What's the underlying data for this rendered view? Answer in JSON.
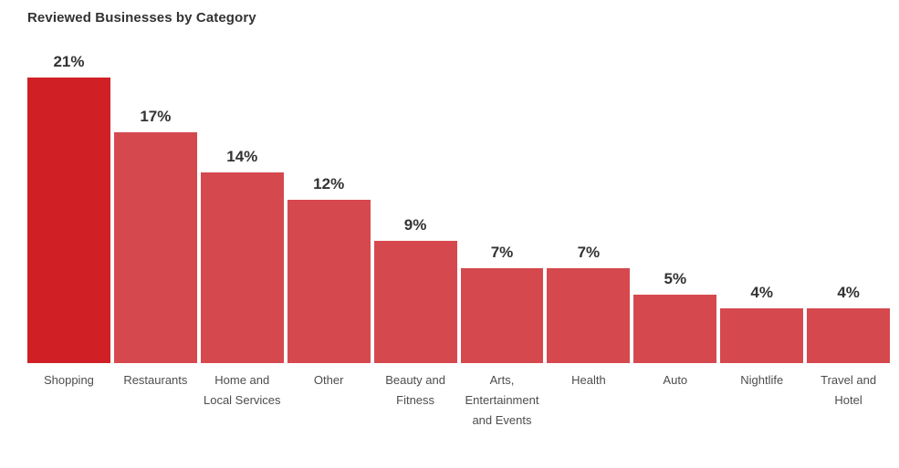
{
  "page": {
    "background": "#ffffff"
  },
  "chart_data": {
    "type": "bar",
    "title": "Reviewed Businesses by Category",
    "categories": [
      "Shopping",
      "Restaurants",
      "Home and Local Services",
      "Other",
      "Beauty and Fitness",
      "Arts, Entertainment and Events",
      "Health",
      "Auto",
      "Nightlife",
      "Travel and Hotel"
    ],
    "values": [
      21,
      17,
      14,
      12,
      9,
      7,
      7,
      5,
      4,
      4
    ],
    "value_labels": [
      "21%",
      "17%",
      "14%",
      "12%",
      "9%",
      "7%",
      "7%",
      "5%",
      "4%",
      "4%"
    ],
    "unit": "%",
    "xlabel": "",
    "ylabel": "",
    "ylim": [
      0,
      22
    ],
    "grid": false,
    "legend": "none",
    "axis_lines": "none",
    "highlight_index": 0,
    "colors": {
      "highlight_bar": "#d02026",
      "bar": "#d5494e",
      "title_text": "#333333",
      "value_text": "#333333",
      "category_text": "#4d4d4d"
    }
  }
}
